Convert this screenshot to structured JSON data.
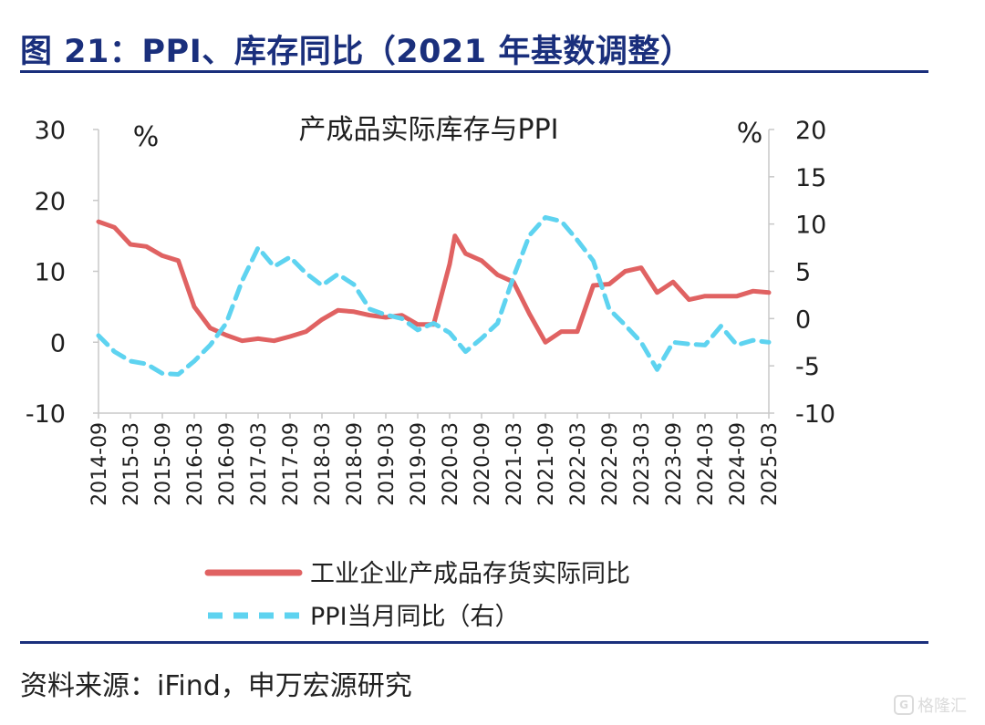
{
  "figure": {
    "title": "图 21：PPI、库存同比（2021 年基数调整）",
    "source": "资料来源：iFind，申万宏源研究",
    "watermark_text": "格隆汇"
  },
  "colors": {
    "brand": "#1a2f7c",
    "series_inventory": "#e06262",
    "series_ppi": "#5ed3f0",
    "axis": "#c8c8c8"
  },
  "chart_data": {
    "type": "line",
    "title": "产成品实际库存与PPI",
    "y_left_unit": "%",
    "y_right_unit": "%",
    "y_left_lim": [
      -10,
      30
    ],
    "y_left_ticks": [
      "30",
      "20",
      "10",
      "0",
      "-10"
    ],
    "y_left_tick_values": [
      30,
      20,
      10,
      0,
      -10
    ],
    "y_right_lim": [
      -10,
      20
    ],
    "y_right_ticks": [
      "20",
      "15",
      "10",
      "5",
      "0",
      "-5",
      "-10"
    ],
    "y_right_tick_values": [
      20,
      15,
      10,
      5,
      0,
      -5,
      -10
    ],
    "x_ticks": [
      "2014-09",
      "2015-03",
      "2015-09",
      "2016-03",
      "2016-09",
      "2017-03",
      "2017-09",
      "2018-03",
      "2018-09",
      "2019-03",
      "2019-09",
      "2020-03",
      "2020-09",
      "2021-03",
      "2021-09",
      "2022-03",
      "2022-09",
      "2023-03",
      "2023-09",
      "2024-03",
      "2024-09",
      "2025-03"
    ],
    "x_range": [
      "2014-09",
      "2025-03"
    ],
    "grid": false,
    "legend_position": "bottom",
    "series": [
      {
        "name": "工业企业产成品存货实际同比",
        "axis": "left",
        "style": "solid",
        "points": [
          [
            "2014-09",
            17
          ],
          [
            "2014-12",
            16.2
          ],
          [
            "2015-03",
            13.8
          ],
          [
            "2015-06",
            13.5
          ],
          [
            "2015-09",
            12.2
          ],
          [
            "2015-12",
            11.5
          ],
          [
            "2016-03",
            5
          ],
          [
            "2016-06",
            2
          ],
          [
            "2016-09",
            1
          ],
          [
            "2016-12",
            0.2
          ],
          [
            "2017-03",
            0.5
          ],
          [
            "2017-06",
            0.2
          ],
          [
            "2017-09",
            0.8
          ],
          [
            "2017-12",
            1.5
          ],
          [
            "2018-03",
            3.2
          ],
          [
            "2018-06",
            4.5
          ],
          [
            "2018-09",
            4.3
          ],
          [
            "2018-12",
            3.8
          ],
          [
            "2019-03",
            3.5
          ],
          [
            "2019-06",
            3.8
          ],
          [
            "2019-09",
            2.5
          ],
          [
            "2019-12",
            2.5
          ],
          [
            "2020-03",
            11
          ],
          [
            "2020-04",
            15
          ],
          [
            "2020-06",
            12.5
          ],
          [
            "2020-09",
            11.5
          ],
          [
            "2020-12",
            9.5
          ],
          [
            "2021-03",
            8.5
          ],
          [
            "2021-06",
            4
          ],
          [
            "2021-09",
            0
          ],
          [
            "2021-12",
            1.5
          ],
          [
            "2022-03",
            1.5
          ],
          [
            "2022-06",
            8
          ],
          [
            "2022-09",
            8.2
          ],
          [
            "2022-12",
            10
          ],
          [
            "2023-03",
            10.5
          ],
          [
            "2023-06",
            7
          ],
          [
            "2023-09",
            8.5
          ],
          [
            "2023-12",
            6
          ],
          [
            "2024-03",
            6.5
          ],
          [
            "2024-06",
            6.5
          ],
          [
            "2024-09",
            6.5
          ],
          [
            "2024-12",
            7.2
          ],
          [
            "2025-03",
            7
          ]
        ]
      },
      {
        "name": "PPI当月同比（右）",
        "axis": "right",
        "style": "dashed",
        "points": [
          [
            "2014-09",
            -1.8
          ],
          [
            "2014-12",
            -3.5
          ],
          [
            "2015-03",
            -4.5
          ],
          [
            "2015-06",
            -4.8
          ],
          [
            "2015-09",
            -5.8
          ],
          [
            "2015-12",
            -5.9
          ],
          [
            "2016-03",
            -4.5
          ],
          [
            "2016-06",
            -2.8
          ],
          [
            "2016-09",
            -0.5
          ],
          [
            "2016-12",
            4
          ],
          [
            "2017-03",
            7.5
          ],
          [
            "2017-06",
            5.5
          ],
          [
            "2017-09",
            6.5
          ],
          [
            "2017-12",
            4.8
          ],
          [
            "2018-03",
            3.5
          ],
          [
            "2018-06",
            4.7
          ],
          [
            "2018-09",
            3.6
          ],
          [
            "2018-12",
            1
          ],
          [
            "2019-03",
            0.4
          ],
          [
            "2019-06",
            0
          ],
          [
            "2019-09",
            -1.2
          ],
          [
            "2019-12",
            -0.5
          ],
          [
            "2020-03",
            -1.5
          ],
          [
            "2020-06",
            -3.5
          ],
          [
            "2020-09",
            -2.1
          ],
          [
            "2020-12",
            -0.5
          ],
          [
            "2021-03",
            4.4
          ],
          [
            "2021-06",
            8.8
          ],
          [
            "2021-09",
            10.7
          ],
          [
            "2021-12",
            10.3
          ],
          [
            "2022-03",
            8.3
          ],
          [
            "2022-06",
            6.1
          ],
          [
            "2022-09",
            1
          ],
          [
            "2022-12",
            -0.7
          ],
          [
            "2023-03",
            -2.5
          ],
          [
            "2023-06",
            -5.4
          ],
          [
            "2023-09",
            -2.5
          ],
          [
            "2023-12",
            -2.7
          ],
          [
            "2024-03",
            -2.8
          ],
          [
            "2024-06",
            -0.8
          ],
          [
            "2024-09",
            -2.8
          ],
          [
            "2024-12",
            -2.3
          ],
          [
            "2025-03",
            -2.5
          ]
        ]
      }
    ]
  }
}
